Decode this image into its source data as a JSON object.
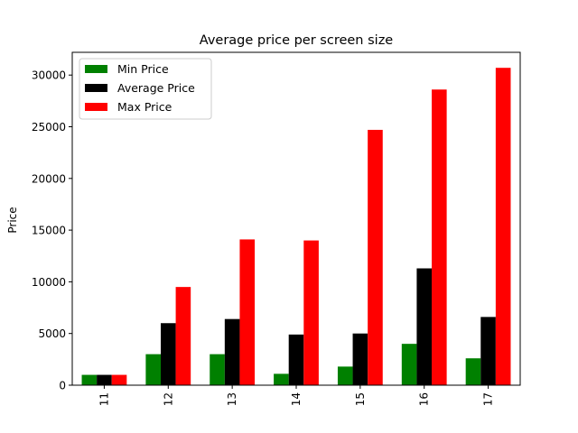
{
  "chart_data": {
    "type": "bar",
    "title": "Average price per screen size",
    "xlabel": "",
    "ylabel": "Price",
    "categories": [
      "11",
      "12",
      "13",
      "14",
      "15",
      "16",
      "17"
    ],
    "ylim": [
      0,
      32200
    ],
    "yticks": [
      0,
      5000,
      10000,
      15000,
      20000,
      25000,
      30000
    ],
    "grid": false,
    "legend_position": "top-left",
    "series": [
      {
        "name": "Min Price",
        "color": "#008000",
        "values": [
          1000,
          3000,
          3000,
          1100,
          1800,
          4000,
          2600
        ]
      },
      {
        "name": "Average Price",
        "color": "#000000",
        "values": [
          1000,
          6000,
          6400,
          4900,
          5000,
          11300,
          6600
        ]
      },
      {
        "name": "Max Price",
        "color": "#ff0000",
        "values": [
          1000,
          9500,
          14100,
          14000,
          24700,
          28600,
          30700
        ]
      }
    ]
  }
}
